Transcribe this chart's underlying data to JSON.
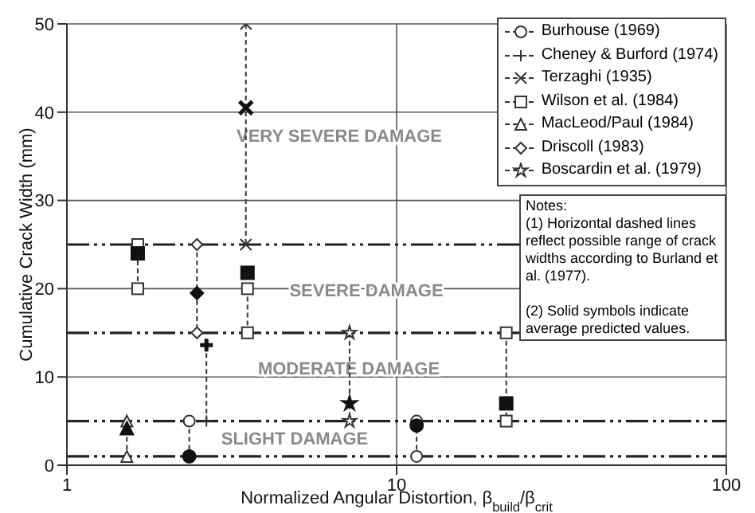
{
  "chart_data": {
    "type": "line",
    "xlabel": "Normalized Angular Distortion, β$_{build}$/β$_{crit}$",
    "ylabel": "Cumulative Crack Width (mm)",
    "log": "x",
    "xlim": [
      1,
      100
    ],
    "xticks": [
      1,
      10,
      100
    ],
    "ylim": [
      0,
      50
    ],
    "yticks": [
      0,
      10,
      20,
      30,
      40,
      50
    ],
    "grid": true,
    "legend": "top right",
    "line_style": "dashed",
    "series": [
      {
        "name": "Burhouse (1969)",
        "color": "#333333",
        "marker": "circle",
        "x": [
          2.35,
          2.35,
          null,
          11.5,
          11.5
        ],
        "values": [
          5,
          1,
          null,
          5,
          1
        ]
      },
      {
        "name": "Cheney & Burford (1974)",
        "color": "#333333",
        "marker": "plus",
        "x": [
          2.65,
          2.65
        ],
        "values": [
          13.6,
          5
        ]
      },
      {
        "name": "Terzaghi (1935)",
        "color": "#333333",
        "marker": "cross",
        "x": [
          3.49,
          3.49
        ],
        "values": [
          50,
          25
        ]
      },
      {
        "name": "Wilson et al. (1984)",
        "color": "#333333",
        "marker": "square",
        "x": [
          1.64,
          1.64,
          null,
          3.53,
          3.53,
          null,
          21.5,
          21.5
        ],
        "values": [
          25,
          20,
          null,
          20,
          15,
          null,
          15,
          5
        ]
      },
      {
        "name": "MacLeod/Paul (1984)",
        "color": "#333333",
        "marker": "triangle",
        "x": [
          1.52,
          1.52
        ],
        "values": [
          5,
          1
        ]
      },
      {
        "name": "Driscoll (1983)",
        "color": "#333333",
        "marker": "diamond",
        "x": [
          2.48,
          2.48
        ],
        "values": [
          25,
          15
        ]
      },
      {
        "name": "Boscardin et al. (1979)",
        "color": "#333333",
        "marker": "star",
        "x": [
          7.2,
          7.2
        ],
        "values": [
          15,
          5
        ]
      },
      {
        "type": "scatter",
        "color": "#111111",
        "marker": "circle",
        "x": [
          2.35,
          11.5
        ],
        "values": [
          1,
          4.5
        ]
      },
      {
        "type": "scatter",
        "color": "#111111",
        "marker": "plus",
        "x": [
          2.65
        ],
        "values": [
          13.6
        ]
      },
      {
        "type": "scatter",
        "color": "#111111",
        "marker": "cross",
        "x": [
          3.49
        ],
        "values": [
          40.5
        ]
      },
      {
        "type": "scatter",
        "color": "#111111",
        "marker": "square",
        "x": [
          1.64,
          3.53,
          21.5
        ],
        "values": [
          24,
          21.8,
          7
        ]
      },
      {
        "type": "scatter",
        "color": "#111111",
        "marker": "triangle",
        "x": [
          1.52
        ],
        "values": [
          4.2
        ]
      },
      {
        "type": "scatter",
        "color": "#111111",
        "marker": "diamond",
        "x": [
          2.48
        ],
        "values": [
          19.5
        ]
      },
      {
        "type": "scatter",
        "color": "#111111",
        "marker": "star",
        "x": [
          7.2
        ],
        "values": [
          7
        ]
      }
    ],
    "ref_lines": [
      {
        "axis": "y",
        "value": 1,
        "color": "#222222",
        "line_style": "dashed"
      },
      {
        "axis": "y",
        "value": 5,
        "color": "#222222",
        "line_style": "dashed"
      },
      {
        "axis": "y",
        "value": 15,
        "color": "#222222",
        "line_style": "dashed"
      },
      {
        "axis": "y",
        "value": 25,
        "color": "#222222",
        "line_style": "dashed"
      }
    ],
    "annotations": [
      "VERY SEVERE DAMAGE",
      "SEVERE DAMAGE",
      "MODERATE DAMAGE",
      "SLIGHT DAMAGE",
      "Notes:\n(1) Horizontal dashed lines reflect possible range of crack widths according to Burland et al. (1977).\n\n(2) Solid symbols indicate average predicted values."
    ]
  }
}
